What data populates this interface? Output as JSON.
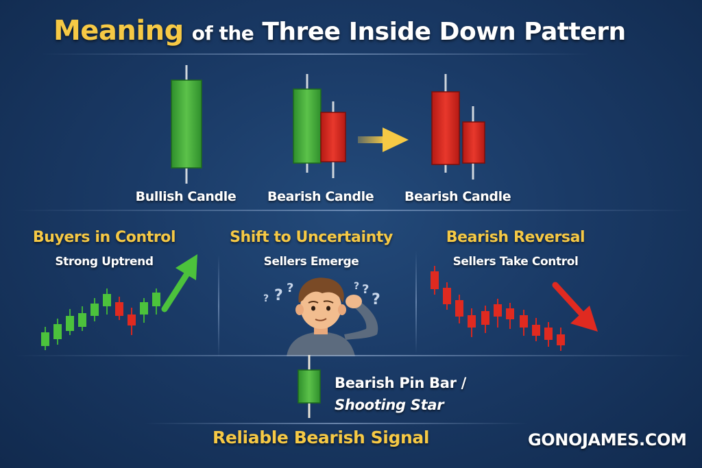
{
  "title": {
    "highlight": "Meaning",
    "connector": "of the",
    "main": "Three Inside Down Pattern"
  },
  "pattern": {
    "candles": [
      {
        "label": "Bullish Candle"
      },
      {
        "label": "Bearish Candle"
      },
      {
        "label": "Bearish Candle"
      }
    ]
  },
  "phases": [
    {
      "heading": "Buyers in Control",
      "sub": "Strong Uptrend"
    },
    {
      "heading": "Shift to Uncertainty",
      "sub": "Sellers Emerge"
    },
    {
      "heading": "Bearish Reversal",
      "sub": "Sellers Take Control"
    }
  ],
  "pin_bar": {
    "line1": "Bearish Pin Bar /",
    "line2": "Shooting Star"
  },
  "footer": {
    "signal": "Reliable Bearish Signal",
    "brand": "GONOJAMES.COM"
  },
  "colors": {
    "accent": "#f6c945",
    "bullish": "#3fae3a",
    "bearish": "#d8271f",
    "background": "#1a3a66"
  }
}
